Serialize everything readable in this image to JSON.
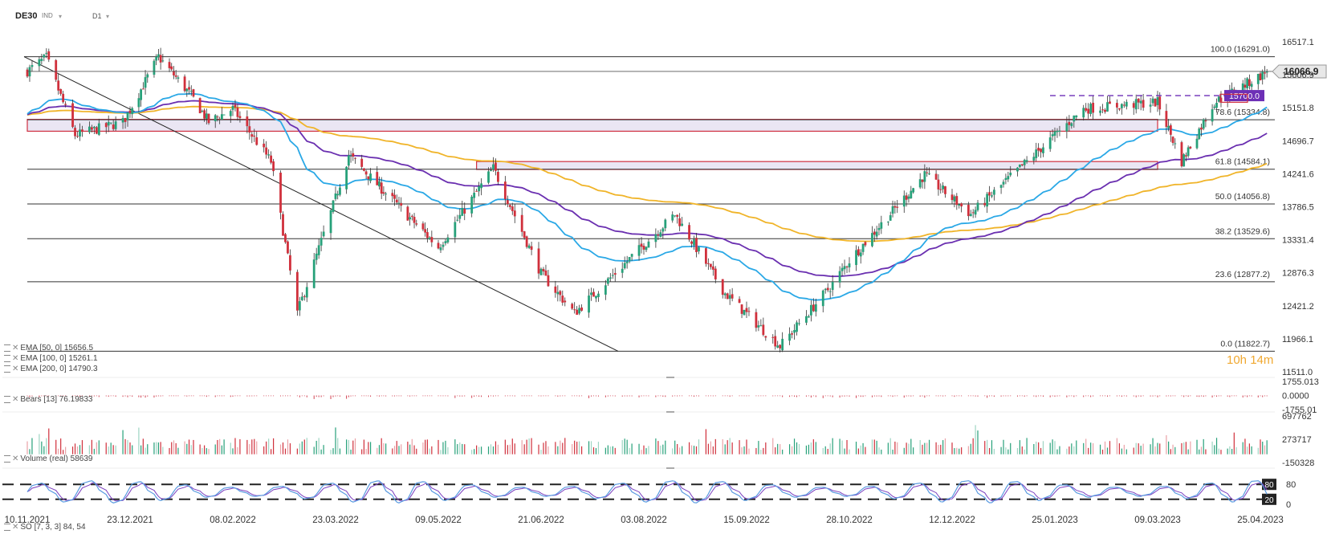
{
  "header": {
    "symbol": "DE30",
    "instrument_type": "IND",
    "interval": "D1"
  },
  "indicators": {
    "ema50": "EMA [50, 0] 15656.5",
    "ema100": "EMA [100, 0] 15261.1",
    "ema200": "EMA [200, 0] 14790.3",
    "bears": "Bears [13] 76.19833",
    "volume": "Volume (real) 58639",
    "stochastic": "SO [7, 3, 3] 84, 54"
  },
  "timer": "10h 14m",
  "colors": {
    "up": "#27a17a",
    "down": "#d0303c",
    "ema50": "#2aa8e6",
    "ema100": "#6a2fb0",
    "ema200": "#f0b429",
    "zone": "#d9d2e9",
    "zone_border": "#d03040",
    "price_tag": "#6d2fb6",
    "stoch_k": "#5a9be0",
    "stoch_d": "#7b3fbf"
  },
  "chart_data": [
    {
      "type": "candlestick",
      "title": "DE30 D1",
      "x_tick_labels": [
        "10.11.2021",
        "23.12.2021",
        "08.02.2022",
        "23.03.2022",
        "09.05.2022",
        "21.06.2022",
        "03.08.2022",
        "15.09.2022",
        "28.10.2022",
        "12.12.2022",
        "25.01.2023",
        "09.03.2023",
        "25.04.2023"
      ],
      "y_tick_labels": [
        "16517.1",
        "15606.9",
        "15151.8",
        "14696.7",
        "14241.6",
        "13786.5",
        "13331.4",
        "12876.3",
        "12421.2",
        "11966.1",
        "11511.0"
      ],
      "ylim": [
        11511.0,
        16517.1
      ],
      "current_price": {
        "label": "16066.9",
        "value": 16066.9
      },
      "price_level_tag": {
        "label": "15700.0",
        "value": 15700.0
      },
      "fibonacci_levels": [
        {
          "label": "100.0 (16291.0)",
          "value": 16291.0
        },
        {
          "label": "78.6 (15334.8)",
          "value": 15334.8
        },
        {
          "label": "61.8 (14584.1)",
          "value": 14584.1
        },
        {
          "label": "50.0 (14056.8)",
          "value": 14056.8
        },
        {
          "label": "38.2 (13529.6)",
          "value": 13529.6
        },
        {
          "label": "23.6 (12877.2)",
          "value": 12877.2
        },
        {
          "label": "0.0 (11822.7)",
          "value": 11822.7
        }
      ],
      "zones": [
        {
          "from_date": "10.11.2021",
          "to_date": "09.03.2023",
          "low": 15160,
          "high": 15340
        },
        {
          "from_date": "25.05.2022",
          "to_date": "09.03.2023",
          "low": 14580,
          "high": 14700
        }
      ],
      "key_prices": [
        {
          "date": "10.11.2021",
          "value": 16070
        },
        {
          "date": "18.11.2021",
          "value": 16280
        },
        {
          "date": "30.11.2021",
          "value": 15100
        },
        {
          "date": "20.12.2021",
          "value": 15300
        },
        {
          "date": "05.01.2022",
          "value": 16290
        },
        {
          "date": "20.01.2022",
          "value": 15700
        },
        {
          "date": "28.01.2022",
          "value": 15300
        },
        {
          "date": "08.02.2022",
          "value": 15500
        },
        {
          "date": "24.02.2022",
          "value": 14700
        },
        {
          "date": "07.03.2022",
          "value": 12400
        },
        {
          "date": "29.03.2022",
          "value": 14800
        },
        {
          "date": "09.05.2022",
          "value": 13400
        },
        {
          "date": "01.06.2022",
          "value": 14600
        },
        {
          "date": "21.06.2022",
          "value": 13000
        },
        {
          "date": "05.07.2022",
          "value": 12400
        },
        {
          "date": "16.08.2022",
          "value": 13900
        },
        {
          "date": "06.09.2022",
          "value": 12700
        },
        {
          "date": "29.09.2022",
          "value": 11900
        },
        {
          "date": "20.10.2022",
          "value": 12800
        },
        {
          "date": "28.10.2022",
          "value": 13200
        },
        {
          "date": "30.11.2022",
          "value": 14500
        },
        {
          "date": "20.12.2022",
          "value": 13900
        },
        {
          "date": "25.01.2023",
          "value": 15100
        },
        {
          "date": "06.02.2023",
          "value": 15500
        },
        {
          "date": "09.03.2023",
          "value": 15600
        },
        {
          "date": "20.03.2023",
          "value": 14700
        },
        {
          "date": "04.04.2023",
          "value": 15600
        },
        {
          "date": "25.04.2023",
          "value": 16000
        },
        {
          "date": "28.04.2023",
          "value": 16066.9
        }
      ],
      "ema_series": [
        {
          "name": "EMA [50, 0]",
          "last": 15656.5
        },
        {
          "name": "EMA [100, 0]",
          "last": 15261.1
        },
        {
          "name": "EMA [200, 0]",
          "last": 14790.3
        }
      ]
    },
    {
      "type": "bar",
      "title": "Bears [13] 76.19833",
      "y_tick_labels": [
        "1755.013",
        "0.0000",
        "-1755.01"
      ],
      "ylim": [
        -1755.01,
        1755.013
      ]
    },
    {
      "type": "bar",
      "title": "Volume (real) 58639",
      "y_tick_labels": [
        "697762",
        "273717",
        "-150328"
      ],
      "ylim": [
        -150328,
        697762
      ]
    },
    {
      "type": "line",
      "title": "SO [7, 3, 3] 84, 54",
      "y_tick_labels": [
        "80",
        "0"
      ],
      "levels": [
        {
          "label": "80",
          "value": 80
        },
        {
          "label": "20",
          "value": 20
        }
      ],
      "ylim": [
        0,
        100
      ]
    }
  ]
}
